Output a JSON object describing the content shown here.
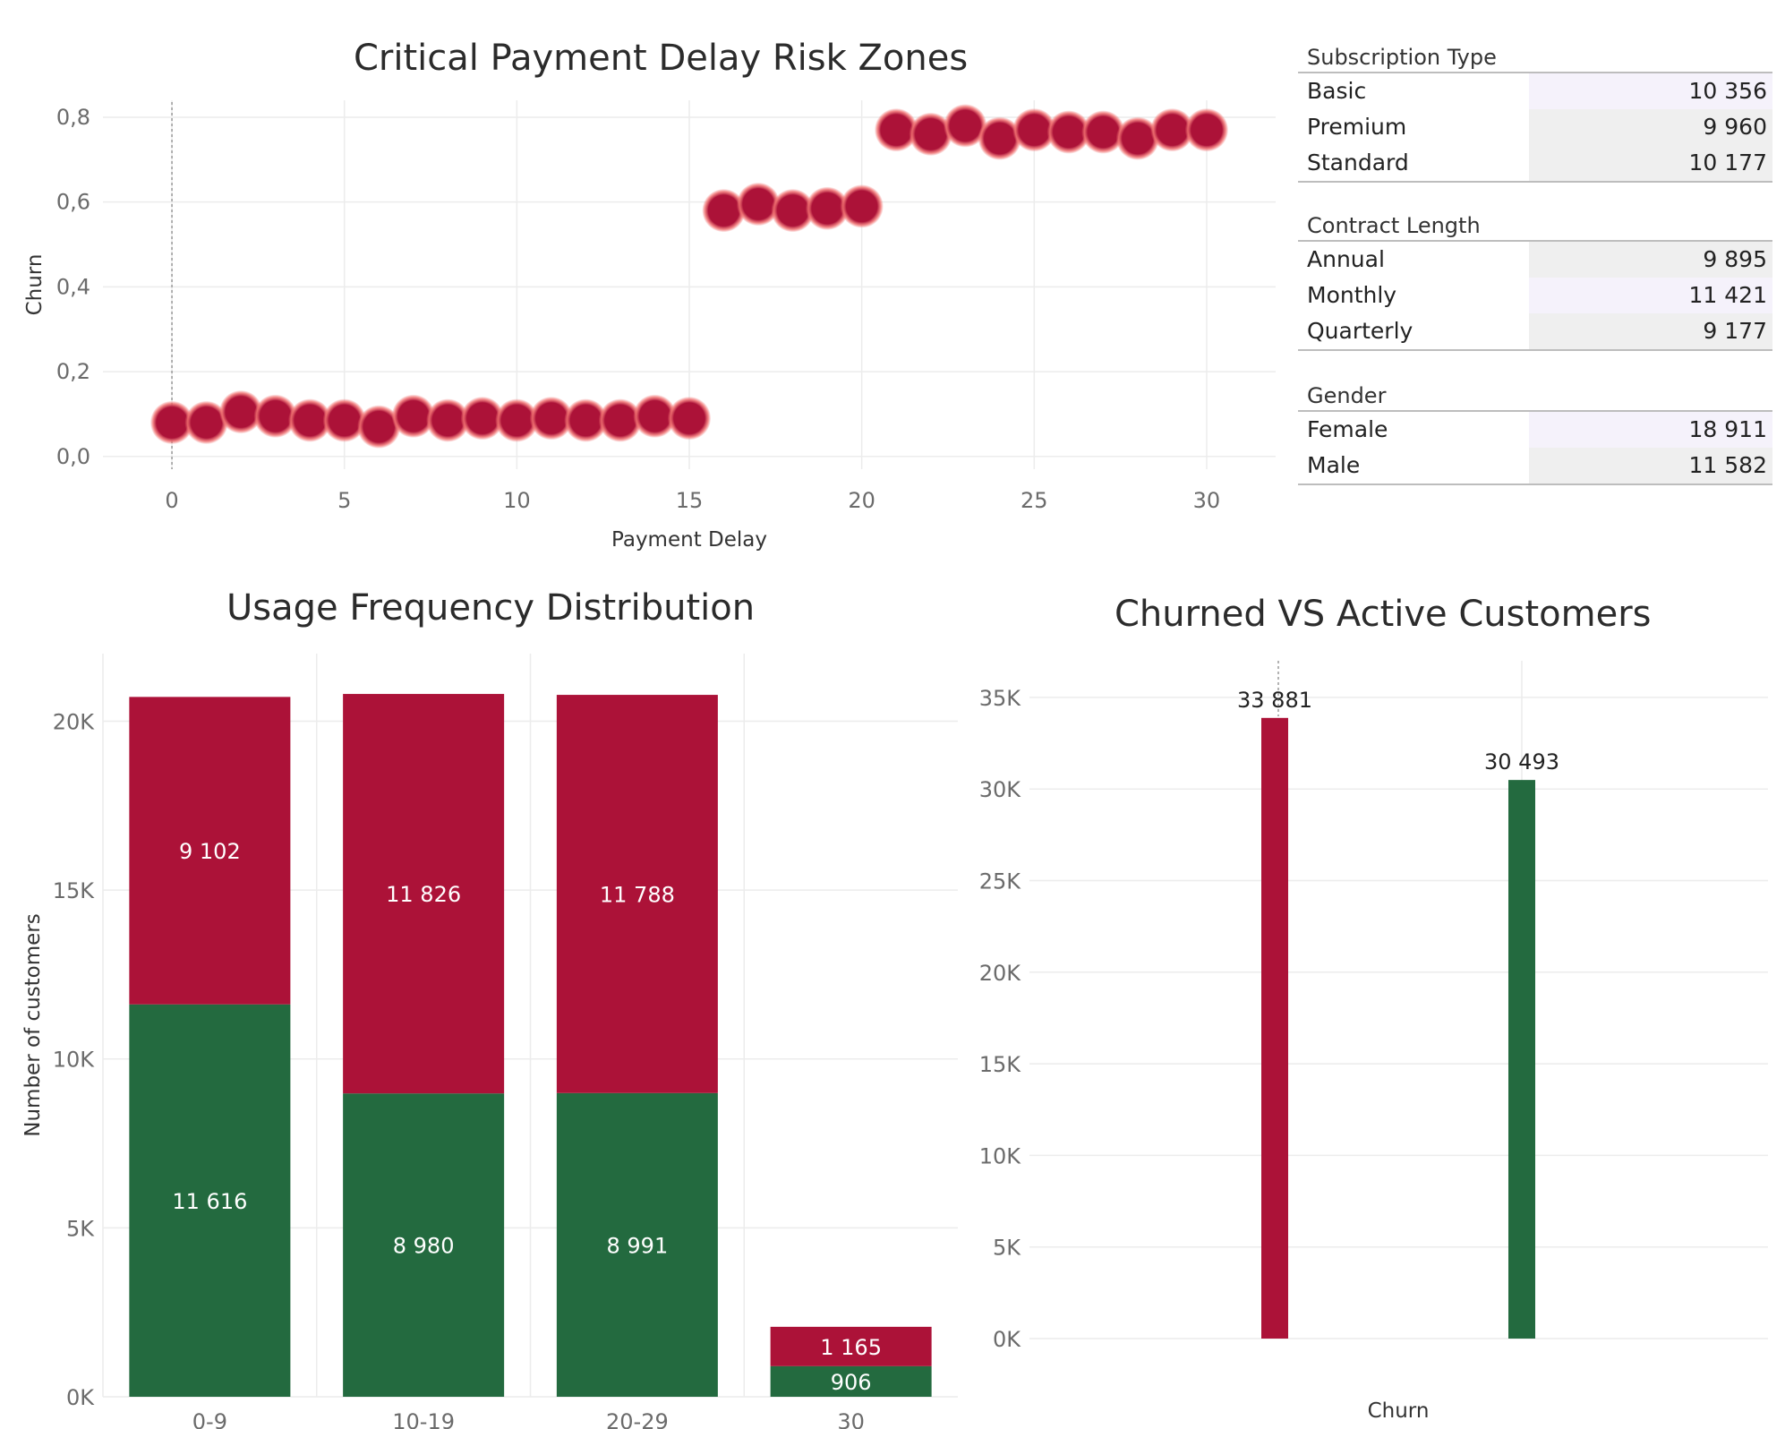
{
  "colors": {
    "churned": "#ac1238",
    "active": "#236a3f",
    "bubble_glow": "#f07070",
    "grid": "#ececec",
    "axis_text": "#6b6b6b"
  },
  "chart_data": [
    {
      "type": "scatter",
      "title": "Critical Payment Delay Risk Zones",
      "xlabel": "Payment Delay",
      "ylabel": "Churn",
      "xlim": [
        -2,
        32
      ],
      "ylim": [
        -0.03,
        0.84
      ],
      "x_ticks": [
        0,
        5,
        10,
        15,
        20,
        25,
        30
      ],
      "y_ticks": [
        "0,0",
        "0,2",
        "0,4",
        "0,6",
        "0,8"
      ],
      "y_tick_values": [
        0.0,
        0.2,
        0.4,
        0.6,
        0.8
      ],
      "grid": true,
      "points": [
        {
          "x": 0,
          "y": 0.08
        },
        {
          "x": 1,
          "y": 0.08
        },
        {
          "x": 2,
          "y": 0.105
        },
        {
          "x": 3,
          "y": 0.095
        },
        {
          "x": 4,
          "y": 0.085
        },
        {
          "x": 5,
          "y": 0.085
        },
        {
          "x": 6,
          "y": 0.07
        },
        {
          "x": 7,
          "y": 0.095
        },
        {
          "x": 8,
          "y": 0.085
        },
        {
          "x": 9,
          "y": 0.09
        },
        {
          "x": 10,
          "y": 0.085
        },
        {
          "x": 11,
          "y": 0.09
        },
        {
          "x": 12,
          "y": 0.085
        },
        {
          "x": 13,
          "y": 0.085
        },
        {
          "x": 14,
          "y": 0.095
        },
        {
          "x": 15,
          "y": 0.09
        },
        {
          "x": 16,
          "y": 0.58
        },
        {
          "x": 17,
          "y": 0.595
        },
        {
          "x": 18,
          "y": 0.58
        },
        {
          "x": 19,
          "y": 0.585
        },
        {
          "x": 20,
          "y": 0.59
        },
        {
          "x": 21,
          "y": 0.77
        },
        {
          "x": 22,
          "y": 0.76
        },
        {
          "x": 23,
          "y": 0.78
        },
        {
          "x": 24,
          "y": 0.75
        },
        {
          "x": 25,
          "y": 0.77
        },
        {
          "x": 26,
          "y": 0.765
        },
        {
          "x": 27,
          "y": 0.765
        },
        {
          "x": 28,
          "y": 0.75
        },
        {
          "x": 29,
          "y": 0.77
        },
        {
          "x": 30,
          "y": 0.77
        }
      ]
    },
    {
      "type": "bar",
      "title": "Usage Frequency Distribution",
      "xlabel": "",
      "ylabel": "Number of customers",
      "categories": [
        "0-9",
        "10-19",
        "20-29",
        "30"
      ],
      "ylim": [
        0,
        22000
      ],
      "y_ticks": [
        "0K",
        "5K",
        "10K",
        "15K",
        "20K"
      ],
      "y_tick_values": [
        0,
        5000,
        10000,
        15000,
        20000
      ],
      "stacked": true,
      "series": [
        {
          "values": [
            11616,
            8980,
            8991,
            906
          ],
          "labels": [
            "11 616",
            "8 980",
            "8 991",
            "906"
          ]
        },
        {
          "values": [
            9102,
            11826,
            11788,
            1165
          ],
          "labels": [
            "9 102",
            "11 826",
            "11 788",
            "1 165"
          ]
        }
      ]
    },
    {
      "type": "bar",
      "title": "Churned VS Active Customers",
      "xlabel": "Churn",
      "ylabel": "",
      "ylim": [
        0,
        37000
      ],
      "y_ticks": [
        "0K",
        "5K",
        "10K",
        "15K",
        "20K",
        "25K",
        "30K",
        "35K"
      ],
      "y_tick_values": [
        0,
        5000,
        10000,
        15000,
        20000,
        25000,
        30000,
        35000
      ],
      "values": [
        33881,
        30493
      ],
      "labels": [
        "33 881",
        "30 493"
      ]
    }
  ],
  "tables": [
    {
      "header": "Subscription Type",
      "rows": [
        {
          "label": "Basic",
          "value": "10 356"
        },
        {
          "label": "Premium",
          "value": "9 960"
        },
        {
          "label": "Standard",
          "value": "10 177"
        }
      ]
    },
    {
      "header": "Contract Length",
      "rows": [
        {
          "label": "Annual",
          "value": "9 895"
        },
        {
          "label": "Monthly",
          "value": "11 421"
        },
        {
          "label": "Quarterly",
          "value": "9 177"
        }
      ]
    },
    {
      "header": "Gender",
      "rows": [
        {
          "label": "Female",
          "value": "18 911"
        },
        {
          "label": "Male",
          "value": "11 582"
        }
      ]
    }
  ]
}
